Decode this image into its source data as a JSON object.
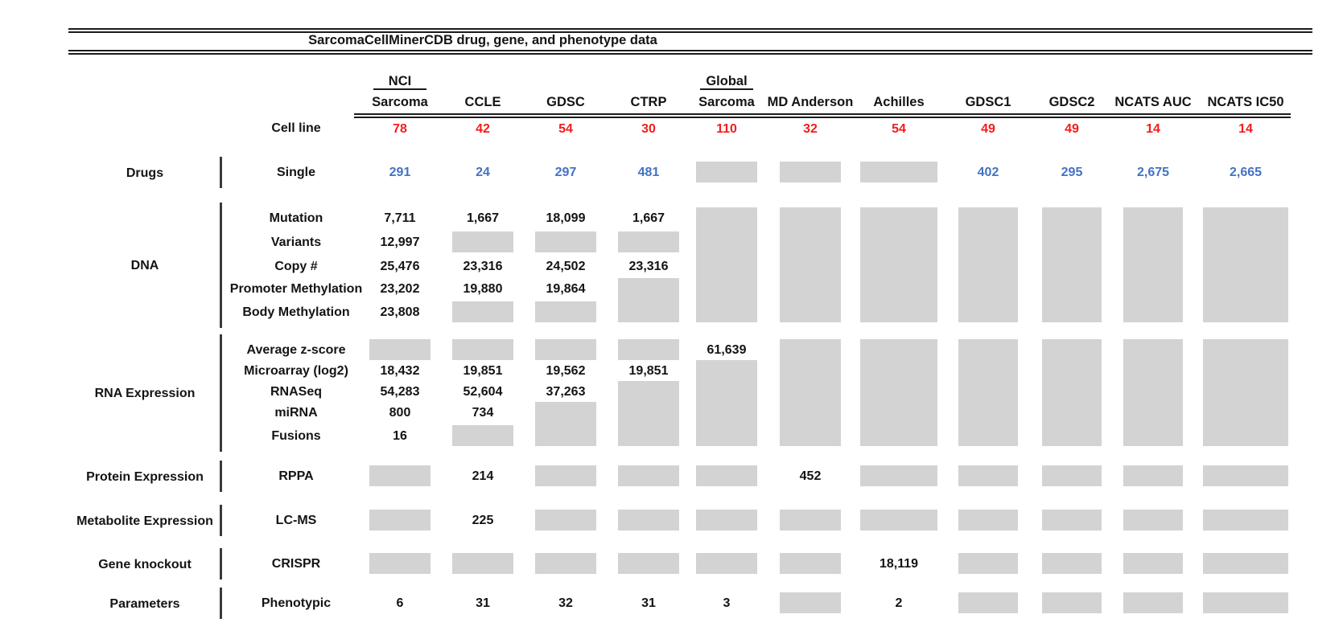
{
  "title": "SarcomaCellMinerCDB drug, gene, and phenotype data",
  "colors": {
    "cell_line_count": "#f51b1b",
    "drug_count": "#4472c4",
    "missing_block": "#d3d3d3",
    "line": "#1b1b1b"
  },
  "cell_line": {
    "label": "Cell line"
  },
  "columns": [
    {
      "group_label": "NCI",
      "label": "Sarcoma",
      "cell_lines": "78"
    },
    {
      "label": "CCLE",
      "cell_lines": "42"
    },
    {
      "label": "GDSC",
      "cell_lines": "54"
    },
    {
      "label": "CTRP",
      "cell_lines": "30"
    },
    {
      "group_label": "Global",
      "label": "Sarcoma",
      "cell_lines": "110"
    },
    {
      "label": "MD Anderson",
      "cell_lines": "32"
    },
    {
      "label": "Achilles",
      "cell_lines": "54"
    },
    {
      "label": "GDSC1",
      "cell_lines": "49"
    },
    {
      "label": "GDSC2",
      "cell_lines": "49"
    },
    {
      "label": "NCATS AUC",
      "cell_lines": "14"
    },
    {
      "label": "NCATS IC50",
      "cell_lines": "14"
    }
  ],
  "sections": [
    {
      "category": "Drugs",
      "rows": [
        {
          "label": "Single",
          "cells": [
            "291",
            "24",
            "297",
            "481",
            "GRAY",
            "GRAY",
            "GRAY",
            "402",
            "295",
            "2,675",
            "2,665"
          ]
        }
      ],
      "merged_gray": []
    },
    {
      "category": "DNA",
      "rows": [
        {
          "label": "Mutation",
          "cells": [
            "7,711",
            "1,667",
            "18,099",
            "1,667",
            null,
            null,
            null,
            null,
            null,
            null,
            null
          ]
        },
        {
          "label": "Variants",
          "cells": [
            "12,997",
            "GRAY",
            "GRAY",
            "GRAY",
            null,
            null,
            null,
            null,
            null,
            null,
            null
          ]
        },
        {
          "label": "Copy #",
          "cells": [
            "25,476",
            "23,316",
            "24,502",
            "23,316",
            null,
            null,
            null,
            null,
            null,
            null,
            null
          ]
        },
        {
          "label": "Promoter Methylation",
          "cells": [
            "23,202",
            "19,880",
            "19,864",
            null,
            null,
            null,
            null,
            null,
            null,
            null,
            null
          ]
        },
        {
          "label": "Body Methylation",
          "cells": [
            "23,808",
            "GRAY",
            "GRAY",
            null,
            null,
            null,
            null,
            null,
            null,
            null,
            null
          ]
        }
      ],
      "merged_gray": [
        {
          "col": 3,
          "from": 3,
          "to": 4
        },
        {
          "col": 4,
          "from": 0,
          "to": 4
        },
        {
          "col": 5,
          "from": 0,
          "to": 4
        },
        {
          "col": 6,
          "from": 0,
          "to": 4
        },
        {
          "col": 7,
          "from": 0,
          "to": 4
        },
        {
          "col": 8,
          "from": 0,
          "to": 4
        },
        {
          "col": 9,
          "from": 0,
          "to": 4
        },
        {
          "col": 10,
          "from": 0,
          "to": 4
        }
      ]
    },
    {
      "category": "RNA Expression",
      "rows": [
        {
          "label": "Average z-score",
          "cells": [
            "GRAY",
            "GRAY",
            "GRAY",
            "GRAY",
            "61,639",
            null,
            null,
            null,
            null,
            null,
            null
          ]
        },
        {
          "label": "Microarray (log2)",
          "cells": [
            "18,432",
            "19,851",
            "19,562",
            "19,851",
            null,
            null,
            null,
            null,
            null,
            null,
            null
          ]
        },
        {
          "label": "RNASeq",
          "cells": [
            "54,283",
            "52,604",
            "37,263",
            null,
            null,
            null,
            null,
            null,
            null,
            null,
            null
          ]
        },
        {
          "label": "miRNA",
          "cells": [
            "800",
            "734",
            null,
            null,
            null,
            null,
            null,
            null,
            null,
            null,
            null
          ]
        },
        {
          "label": "Fusions",
          "cells": [
            "16",
            "GRAY",
            null,
            null,
            null,
            null,
            null,
            null,
            null,
            null,
            null
          ]
        }
      ],
      "merged_gray": [
        {
          "col": 2,
          "from": 3,
          "to": 4
        },
        {
          "col": 3,
          "from": 2,
          "to": 4
        },
        {
          "col": 4,
          "from": 1,
          "to": 4
        },
        {
          "col": 5,
          "from": 0,
          "to": 4
        },
        {
          "col": 6,
          "from": 0,
          "to": 4
        },
        {
          "col": 7,
          "from": 0,
          "to": 4
        },
        {
          "col": 8,
          "from": 0,
          "to": 4
        },
        {
          "col": 9,
          "from": 0,
          "to": 4
        },
        {
          "col": 10,
          "from": 0,
          "to": 4
        }
      ]
    },
    {
      "category": "Protein Expression",
      "rows": [
        {
          "label": "RPPA",
          "cells": [
            "GRAY",
            "214",
            "GRAY",
            "GRAY",
            "GRAY",
            "452",
            "GRAY",
            "GRAY",
            "GRAY",
            "GRAY",
            "GRAY"
          ]
        }
      ],
      "merged_gray": []
    },
    {
      "category": "Metabolite Expression",
      "rows": [
        {
          "label": "LC-MS",
          "cells": [
            "GRAY",
            "225",
            "GRAY",
            "GRAY",
            "GRAY",
            "GRAY",
            "GRAY",
            "GRAY",
            "GRAY",
            "GRAY",
            "GRAY"
          ]
        }
      ],
      "merged_gray": []
    },
    {
      "category": "Gene knockout",
      "rows": [
        {
          "label": "CRISPR",
          "cells": [
            "GRAY",
            "GRAY",
            "GRAY",
            "GRAY",
            "GRAY",
            "GRAY",
            "18,119",
            "GRAY",
            "GRAY",
            "GRAY",
            "GRAY"
          ]
        }
      ],
      "merged_gray": []
    },
    {
      "category": "Parameters",
      "rows": [
        {
          "label": "Phenotypic",
          "cells": [
            "6",
            "31",
            "32",
            "31",
            "3",
            "GRAY",
            "2",
            "GRAY",
            "GRAY",
            "GRAY",
            "GRAY"
          ]
        }
      ],
      "merged_gray": []
    }
  ]
}
